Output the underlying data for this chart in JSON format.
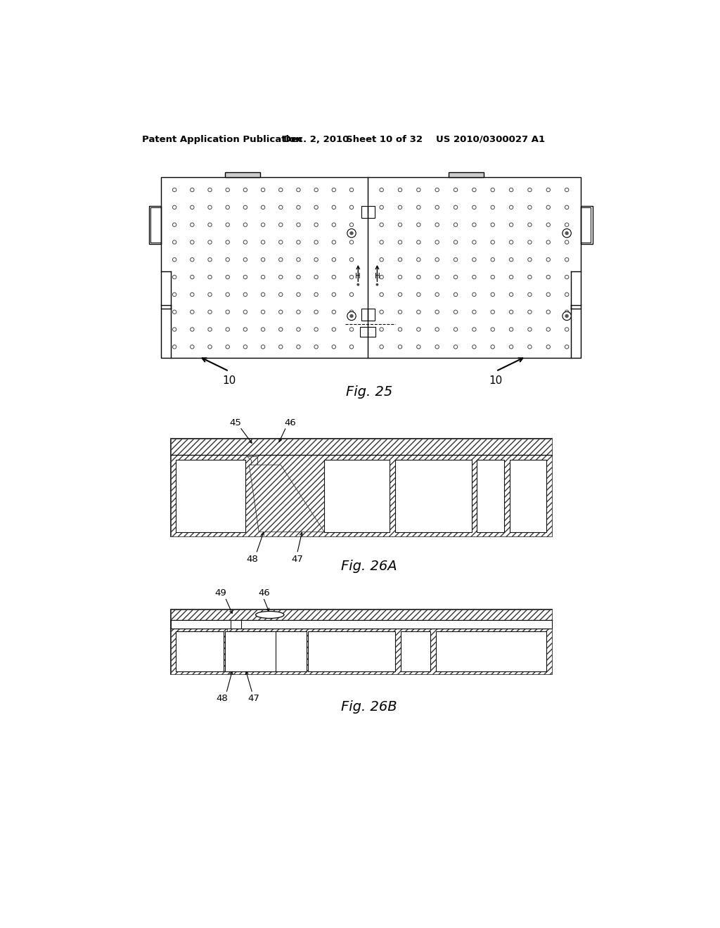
{
  "bg_color": "#ffffff",
  "header_text": "Patent Application Publication",
  "header_date": "Dec. 2, 2010",
  "header_sheet": "Sheet 10 of 32",
  "header_patent": "US 2010/0300027 A1",
  "fig25_label": "Fig. 25",
  "fig26a_label": "Fig. 26A",
  "fig26b_label": "Fig. 26B",
  "label_10_left": "10",
  "label_10_right": "10",
  "label_45": "45",
  "label_46": "46",
  "label_47": "47",
  "label_48": "48",
  "label_49": "49",
  "line_color": "#000000",
  "lw": 1.0
}
